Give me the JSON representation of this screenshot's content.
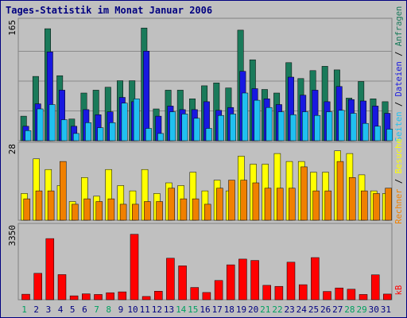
{
  "title": "Tages-Statistik im Monat Januar 2006",
  "colors": {
    "background": "#c0c0c0",
    "frame": "#000080",
    "hits": "#1a7a5a",
    "files": "#1818e0",
    "pages": "#20c0f0",
    "visits": "#ffff00",
    "sites": "#f08000",
    "kbytes": "#ff0000",
    "bar_outline": "#000000",
    "day_weekday": "#000080",
    "day_weekend": "#00a060"
  },
  "chart_data": [
    {
      "type": "bar",
      "title": "Tages-Statistik im Monat Januar 2006",
      "categories": [
        "1",
        "2",
        "3",
        "4",
        "5",
        "6",
        "7",
        "8",
        "9",
        "10",
        "11",
        "12",
        "13",
        "14",
        "15",
        "16",
        "17",
        "18",
        "19",
        "20",
        "21",
        "22",
        "23",
        "24",
        "25",
        "26",
        "27",
        "28",
        "29",
        "30",
        "31"
      ],
      "weekend_days": [
        "1",
        "7",
        "8",
        "14",
        "15",
        "21",
        "22",
        "28",
        "29"
      ],
      "ymax_label": "165",
      "ylim": [
        0,
        165
      ],
      "legend": [
        "Anfragen",
        "Dateien",
        "Seiten"
      ],
      "series": [
        {
          "name": "Anfragen",
          "color": "#1a7a5a",
          "values": [
            34,
            89,
            155,
            90,
            30,
            66,
            70,
            74,
            83,
            83,
            156,
            44,
            70,
            70,
            58,
            76,
            80,
            73,
            153,
            112,
            71,
            66,
            108,
            86,
            97,
            103,
            98,
            59,
            82,
            58,
            54
          ]
        },
        {
          "name": "Dateien",
          "color": "#1818e0",
          "values": [
            20,
            51,
            123,
            70,
            20,
            43,
            36,
            40,
            60,
            54,
            124,
            34,
            48,
            43,
            43,
            54,
            42,
            46,
            96,
            72,
            58,
            50,
            88,
            63,
            70,
            54,
            75,
            57,
            55,
            48,
            38
          ]
        },
        {
          "name": "Seiten",
          "color": "#20c0f0",
          "values": [
            14,
            44,
            50,
            29,
            10,
            25,
            18,
            25,
            52,
            58,
            17,
            10,
            40,
            37,
            31,
            17,
            35,
            37,
            66,
            56,
            46,
            40,
            36,
            40,
            35,
            40,
            42,
            38,
            24,
            20,
            16
          ]
        }
      ]
    },
    {
      "type": "bar",
      "ymax_label": "28",
      "ylim": [
        0,
        28
      ],
      "legend": [
        "Rechner",
        "Besuche"
      ],
      "series": [
        {
          "name": "Besuche",
          "color": "#ffff00",
          "values": [
            10,
            23,
            19,
            13,
            7,
            16,
            9,
            19,
            13,
            11,
            19,
            10,
            14,
            13,
            18,
            11,
            15,
            11,
            24,
            21,
            21,
            25,
            22,
            22,
            18,
            18,
            26,
            25,
            17,
            11,
            10
          ]
        },
        {
          "name": "Rechner",
          "color": "#f08000",
          "values": [
            8,
            11,
            11,
            22,
            6,
            8,
            7,
            8,
            6,
            6,
            7,
            7,
            12,
            8,
            8,
            6,
            12,
            15,
            15,
            14,
            12,
            12,
            12,
            20,
            11,
            11,
            22,
            16,
            11,
            10,
            12
          ]
        }
      ]
    },
    {
      "type": "bar",
      "ymax_label": "3350",
      "ylim": [
        0,
        3350
      ],
      "legend": [
        "kB"
      ],
      "series": [
        {
          "name": "kB",
          "color": "#ff0000",
          "values": [
            250,
            1210,
            2800,
            1150,
            180,
            270,
            240,
            320,
            360,
            2995,
            150,
            390,
            1900,
            1550,
            560,
            330,
            880,
            1600,
            1860,
            1800,
            660,
            610,
            1720,
            690,
            1930,
            380,
            540,
            480,
            240,
            1140,
            260
          ]
        }
      ]
    }
  ]
}
